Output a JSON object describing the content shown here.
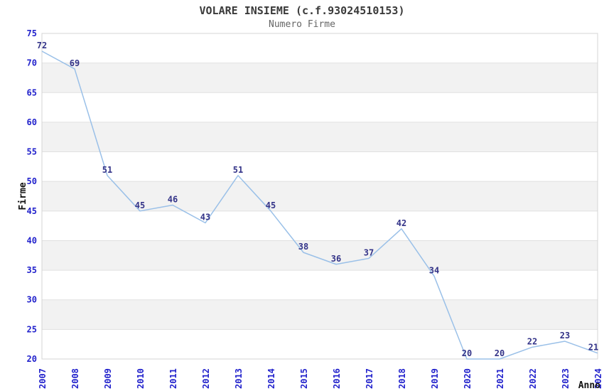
{
  "chart_data": {
    "type": "line",
    "title": "VOLARE INSIEME (c.f.93024510153)",
    "subtitle": "Numero Firme",
    "xlabel": "Anno",
    "ylabel": "Firme",
    "categories": [
      "2007",
      "2008",
      "2009",
      "2010",
      "2011",
      "2012",
      "2013",
      "2014",
      "2015",
      "2016",
      "2017",
      "2018",
      "2019",
      "2020",
      "2021",
      "2022",
      "2023",
      "2024"
    ],
    "values": [
      72,
      69,
      51,
      45,
      46,
      43,
      51,
      45,
      38,
      36,
      37,
      42,
      34,
      20,
      20,
      22,
      23,
      21
    ],
    "ylim": [
      20,
      75
    ],
    "ytick_step": 5,
    "grid": "horizontal-on",
    "legend_position": "none",
    "band_style": "alternating-gray",
    "colors": {
      "line": "#9ac0e8",
      "point_label": "#333388",
      "tick_label": "#2222cc",
      "axis_title": "#111111",
      "title": "#3a3a3a",
      "subtitle": "#666666",
      "band": "#f2f2f2",
      "gridline": "#e0e0e0",
      "plot_border": "#d4d4d4",
      "background": "#ffffff"
    }
  }
}
